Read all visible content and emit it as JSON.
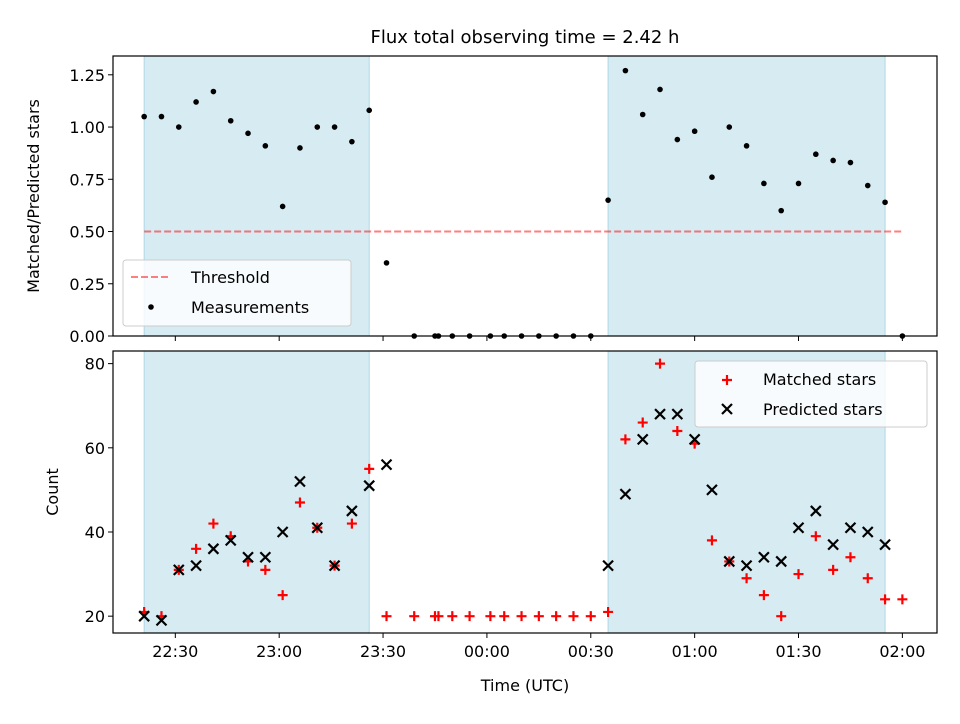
{
  "figure": {
    "title": "Flux total observing time = 2.42 h",
    "xlabel": "Time (UTC)",
    "xticks": [
      "22:30",
      "23:00",
      "23:30",
      "00:00",
      "00:30",
      "01:00",
      "01:30",
      "02:00"
    ]
  },
  "colors": {
    "shade": "#add8e6",
    "threshold": "#ff0000",
    "measurement": "#000000",
    "matched": "#ff0000",
    "predicted": "#000000"
  },
  "chart_data": [
    {
      "type": "scatter",
      "ylabel": "Matched/Predicted stars",
      "xlim_minutes": [
        1332,
        1570
      ],
      "ylim": [
        0,
        1.34
      ],
      "yticks": [
        "0.00",
        "0.25",
        "0.50",
        "0.75",
        "1.00",
        "1.25"
      ],
      "shaded_regions": [
        [
          "22:21",
          "23:26"
        ],
        [
          "00:35",
          "01:55"
        ]
      ],
      "threshold": 0.5,
      "threshold_range": [
        "22:21",
        "02:00"
      ],
      "legend": {
        "position": "lower-left",
        "entries": [
          "Threshold",
          "Measurements"
        ]
      },
      "series": [
        {
          "name": "Measurements",
          "x": [
            "22:21",
            "22:26",
            "22:31",
            "22:36",
            "22:41",
            "22:46",
            "22:51",
            "22:56",
            "23:01",
            "23:06",
            "23:11",
            "23:16",
            "23:21",
            "23:26",
            "23:31",
            "23:39",
            "23:45",
            "23:46",
            "23:50",
            "23:55",
            "00:01",
            "00:05",
            "00:10",
            "00:15",
            "00:20",
            "00:25",
            "00:30",
            "00:35",
            "00:40",
            "00:45",
            "00:50",
            "00:55",
            "01:00",
            "01:05",
            "01:10",
            "01:15",
            "01:20",
            "01:25",
            "01:30",
            "01:35",
            "01:40",
            "01:45",
            "01:50",
            "01:55",
            "02:00"
          ],
          "y": [
            1.05,
            1.05,
            1.0,
            1.12,
            1.17,
            1.03,
            0.97,
            0.91,
            0.62,
            0.9,
            1.0,
            1.0,
            0.93,
            1.08,
            0.35,
            0,
            0,
            0,
            0,
            0,
            0,
            0,
            0,
            0,
            0,
            0,
            0,
            0.65,
            1.27,
            1.06,
            1.18,
            0.94,
            0.98,
            0.76,
            1.0,
            0.91,
            0.73,
            0.6,
            0.73,
            0.87,
            0.84,
            0.83,
            0.72,
            0.64,
            0
          ]
        }
      ]
    },
    {
      "type": "scatter",
      "ylabel": "Count",
      "xlim_minutes": [
        1332,
        1570
      ],
      "ylim": [
        16,
        83
      ],
      "yticks": [
        "20",
        "40",
        "60",
        "80"
      ],
      "shaded_regions": [
        [
          "22:21",
          "23:26"
        ],
        [
          "00:35",
          "01:55"
        ]
      ],
      "legend": {
        "position": "upper-right",
        "entries": [
          "Matched stars",
          "Predicted stars"
        ]
      },
      "series": [
        {
          "name": "Matched stars",
          "marker": "+",
          "x": [
            "22:21",
            "22:26",
            "22:31",
            "22:36",
            "22:41",
            "22:46",
            "22:51",
            "22:56",
            "23:01",
            "23:06",
            "23:11",
            "23:16",
            "23:21",
            "23:26",
            "23:31",
            "23:39",
            "23:45",
            "23:46",
            "23:50",
            "23:55",
            "00:01",
            "00:05",
            "00:10",
            "00:15",
            "00:20",
            "00:25",
            "00:30",
            "00:35",
            "00:40",
            "00:45",
            "00:50",
            "00:55",
            "01:00",
            "01:05",
            "01:10",
            "01:15",
            "01:20",
            "01:25",
            "01:30",
            "01:35",
            "01:40",
            "01:45",
            "01:50",
            "01:55",
            "02:00"
          ],
          "y": [
            21,
            20,
            31,
            36,
            42,
            39,
            33,
            31,
            25,
            47,
            41,
            32,
            42,
            55,
            20,
            20,
            20,
            20,
            20,
            20,
            20,
            20,
            20,
            20,
            20,
            20,
            20,
            21,
            62,
            66,
            80,
            64,
            61,
            38,
            33,
            29,
            25,
            20,
            30,
            39,
            31,
            34,
            29,
            24,
            24
          ]
        },
        {
          "name": "Predicted stars",
          "marker": "x",
          "x": [
            "22:21",
            "22:26",
            "22:31",
            "22:36",
            "22:41",
            "22:46",
            "22:51",
            "22:56",
            "23:01",
            "23:06",
            "23:11",
            "23:16",
            "23:21",
            "23:26",
            "23:31",
            "00:35",
            "00:40",
            "00:45",
            "00:50",
            "00:55",
            "01:00",
            "01:05",
            "01:10",
            "01:15",
            "01:20",
            "01:25",
            "01:30",
            "01:35",
            "01:40",
            "01:45",
            "01:50",
            "01:55"
          ],
          "y": [
            20,
            19,
            31,
            32,
            36,
            38,
            34,
            34,
            40,
            52,
            41,
            32,
            45,
            51,
            56,
            32,
            49,
            62,
            68,
            68,
            62,
            50,
            33,
            32,
            34,
            33,
            41,
            45,
            37,
            41,
            40,
            37
          ]
        }
      ]
    }
  ]
}
